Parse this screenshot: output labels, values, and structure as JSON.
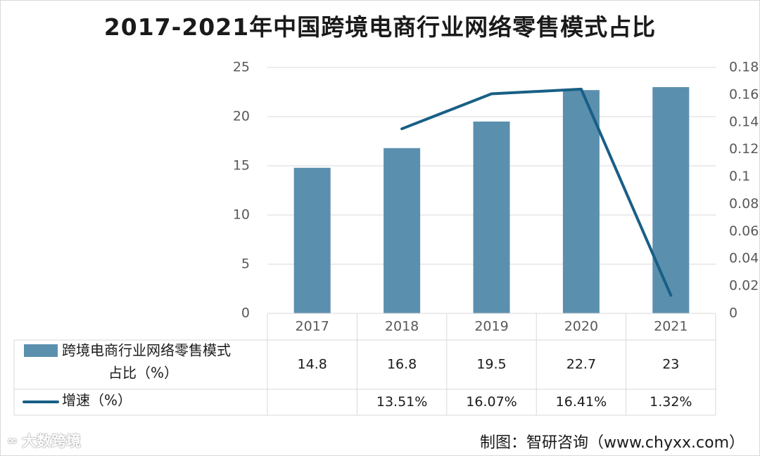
{
  "title": "2017-2021年中国跨境电商行业网络零售模式占比",
  "source": "制图：智研咨询（www.chyxx.com）",
  "watermark": "大数跨境",
  "chart_data": {
    "type": "bar+line",
    "categories": [
      "2017",
      "2018",
      "2019",
      "2020",
      "2021"
    ],
    "series": [
      {
        "name": "跨境电商行业网络零售模式占比（%）",
        "kind": "bar",
        "axis": "left",
        "values": [
          14.8,
          16.8,
          19.5,
          22.7,
          23
        ],
        "labels": [
          "14.8",
          "16.8",
          "19.5",
          "22.7",
          "23"
        ],
        "color": "#5b8fae"
      },
      {
        "name": "增速（%）",
        "kind": "line",
        "axis": "right",
        "values": [
          null,
          0.1351,
          0.1607,
          0.1641,
          0.0132
        ],
        "labels": [
          "",
          "13.51%",
          "16.07%",
          "16.41%",
          "1.32%"
        ],
        "color": "#185f86"
      }
    ],
    "y_left": {
      "min": 0,
      "max": 25,
      "ticks": [
        0,
        5,
        10,
        15,
        20,
        25
      ]
    },
    "y_right": {
      "min": 0,
      "max": 0.18,
      "ticks": [
        "0",
        "0.02",
        "0.04",
        "0.06",
        "0.08",
        "0.1",
        "0.12",
        "0.14",
        "0.16",
        "0.18"
      ]
    },
    "legend_placement": "data-table",
    "grid": true,
    "gridline_color": "#d9d9d9",
    "label_color": "#595959"
  }
}
